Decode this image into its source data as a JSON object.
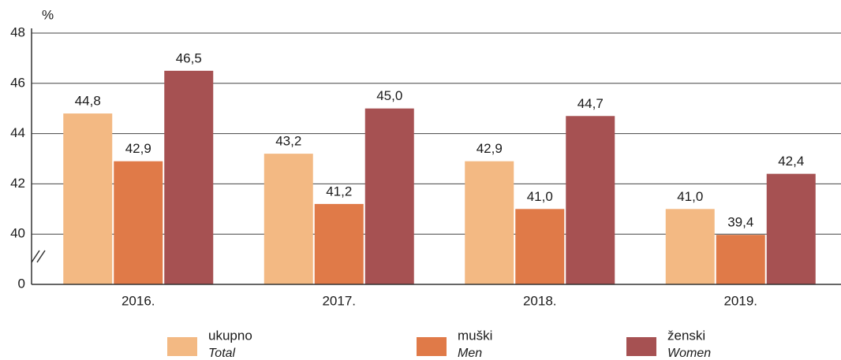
{
  "chart_data": {
    "type": "bar",
    "y_unit_label": "%",
    "categories": [
      "2016.",
      "2017.",
      "2018.",
      "2019."
    ],
    "series": [
      {
        "name": "ukupno",
        "name_en": "Total",
        "color": "#f3b983",
        "values": [
          44.8,
          43.2,
          42.9,
          41.0
        ],
        "value_labels": [
          "44,8",
          "43,2",
          "42,9",
          "41,0"
        ]
      },
      {
        "name": "muški",
        "name_en": "Men",
        "color": "#e07a48",
        "values": [
          42.9,
          41.2,
          41.0,
          39.4
        ],
        "value_labels": [
          "42,9",
          "41,2",
          "41,0",
          "39,4"
        ]
      },
      {
        "name": "ženski",
        "name_en": "Women",
        "color": "#a65152",
        "values": [
          46.5,
          45.0,
          44.7,
          42.4
        ],
        "value_labels": [
          "46,5",
          "45,0",
          "44,7",
          "42,4"
        ]
      }
    ],
    "ylim": [
      0,
      48
    ],
    "yticks": [
      0,
      40,
      42,
      44,
      46,
      48
    ],
    "axis_break": true,
    "grid": true
  }
}
